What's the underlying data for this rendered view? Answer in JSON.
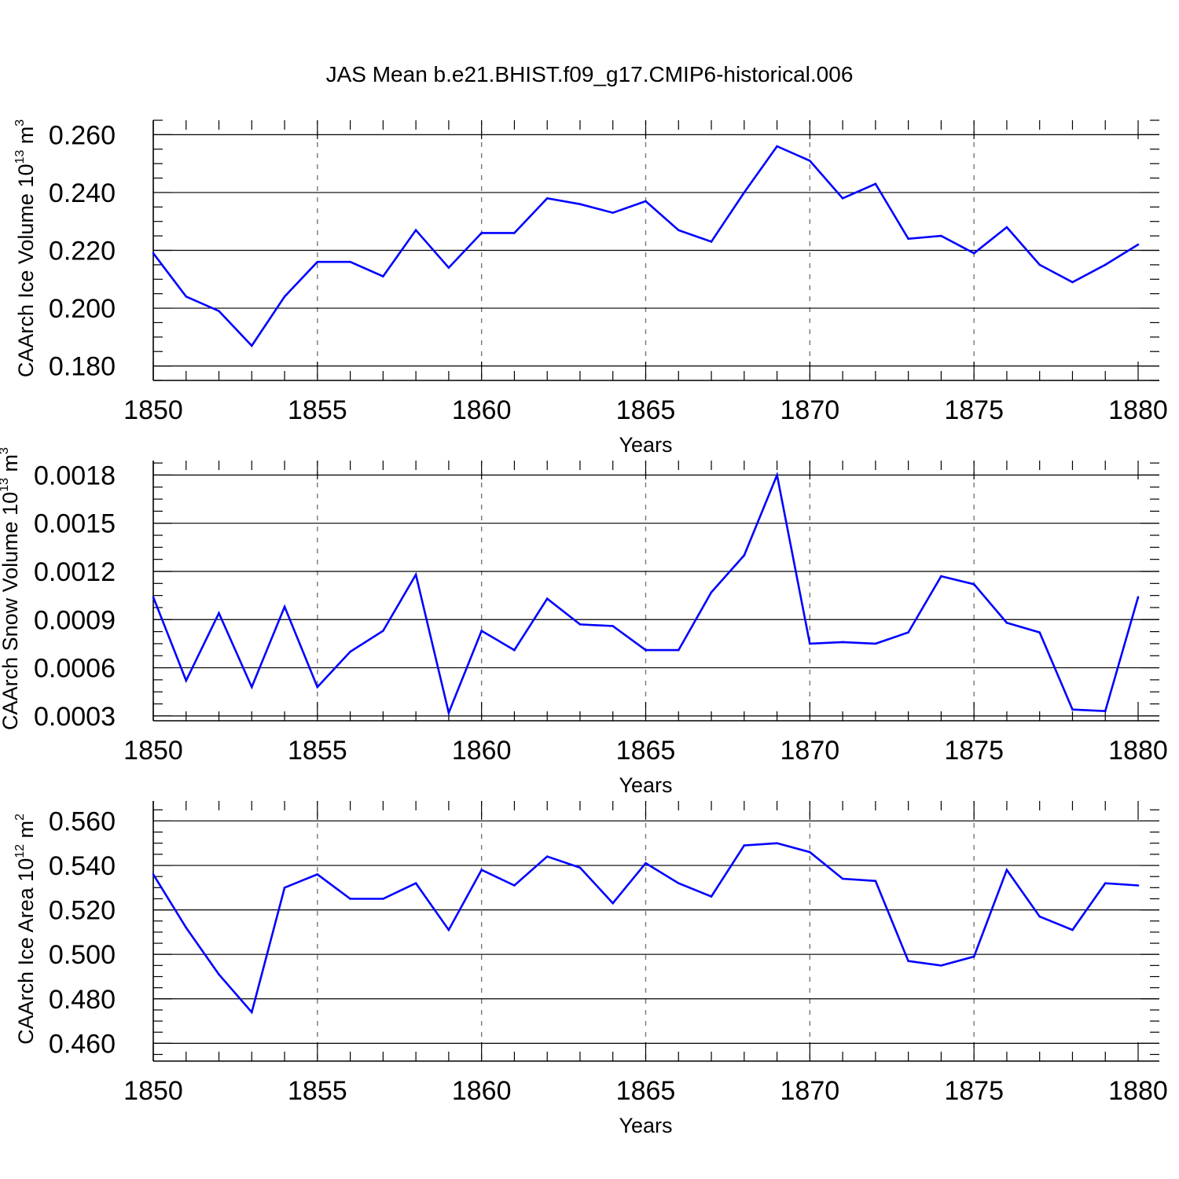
{
  "figure_title": "JAS Mean b.e21.BHIST.f09_g17.CMIP6-historical.006",
  "chart_data": [
    {
      "type": "line",
      "title": "",
      "xlabel": "Years",
      "ylabel": {
        "base": "CAArch Ice Volume 10",
        "exp": "13",
        "unit": " m",
        "unit_exp": "3"
      },
      "xlim": [
        1850,
        1880
      ],
      "xticks": [
        "1850",
        "1855",
        "1860",
        "1865",
        "1870",
        "1875",
        "1880"
      ],
      "ylim": [
        0.175,
        0.265
      ],
      "yticks": [
        "0.180",
        "0.200",
        "0.220",
        "0.240",
        "0.260"
      ],
      "grid": "dashed vertical at x major ticks",
      "series_color": "#0000ff",
      "x": [
        1850,
        1851,
        1852,
        1853,
        1854,
        1855,
        1856,
        1857,
        1858,
        1859,
        1860,
        1861,
        1862,
        1863,
        1864,
        1865,
        1866,
        1867,
        1868,
        1869,
        1870,
        1871,
        1872,
        1873,
        1874,
        1875,
        1876,
        1877,
        1878,
        1879,
        1880
      ],
      "values": [
        0.219,
        0.204,
        0.199,
        0.187,
        0.204,
        0.216,
        0.216,
        0.211,
        0.227,
        0.214,
        0.226,
        0.226,
        0.238,
        0.236,
        0.233,
        0.237,
        0.227,
        0.223,
        0.24,
        0.256,
        0.251,
        0.238,
        0.243,
        0.224,
        0.225,
        0.219,
        0.228,
        0.215,
        0.209,
        0.215,
        0.222
      ]
    },
    {
      "type": "line",
      "title": "",
      "xlabel": "Years",
      "ylabel": {
        "base": "CAArch Snow Volume 10",
        "exp": "13",
        "unit": " m",
        "unit_exp": "3"
      },
      "xlim": [
        1850,
        1880
      ],
      "xticks": [
        "1850",
        "1855",
        "1860",
        "1865",
        "1870",
        "1875",
        "1880"
      ],
      "ylim": [
        0.00027,
        0.00189
      ],
      "yticks": [
        "0.0003",
        "0.0006",
        "0.0009",
        "0.0012",
        "0.0015",
        "0.0018"
      ],
      "grid": "dashed vertical at x major ticks",
      "series_color": "#0000ff",
      "x": [
        1850,
        1851,
        1852,
        1853,
        1854,
        1855,
        1856,
        1857,
        1858,
        1859,
        1860,
        1861,
        1862,
        1863,
        1864,
        1865,
        1866,
        1867,
        1868,
        1869,
        1870,
        1871,
        1872,
        1873,
        1874,
        1875,
        1876,
        1877,
        1878,
        1879,
        1880
      ],
      "values": [
        0.00104,
        0.00052,
        0.00094,
        0.00048,
        0.00098,
        0.00048,
        0.0007,
        0.00083,
        0.00118,
        0.00032,
        0.00083,
        0.00071,
        0.00103,
        0.00087,
        0.00086,
        0.00071,
        0.00071,
        0.00107,
        0.0013,
        0.0018,
        0.00075,
        0.00076,
        0.00075,
        0.00082,
        0.00117,
        0.00112,
        0.00088,
        0.00082,
        0.00034,
        0.00033,
        0.00104
      ]
    },
    {
      "type": "line",
      "title": "",
      "xlabel": "Years",
      "ylabel": {
        "base": "CAArch Ice Area 10",
        "exp": "12",
        "unit": " m",
        "unit_exp": "2"
      },
      "xlim": [
        1850,
        1880
      ],
      "xticks": [
        "1850",
        "1855",
        "1860",
        "1865",
        "1870",
        "1875",
        "1880"
      ],
      "ylim": [
        0.452,
        0.569
      ],
      "yticks": [
        "0.460",
        "0.480",
        "0.500",
        "0.520",
        "0.540",
        "0.560"
      ],
      "grid": "dashed vertical at x major ticks",
      "series_color": "#0000ff",
      "x": [
        1850,
        1851,
        1852,
        1853,
        1854,
        1855,
        1856,
        1857,
        1858,
        1859,
        1860,
        1861,
        1862,
        1863,
        1864,
        1865,
        1866,
        1867,
        1868,
        1869,
        1870,
        1871,
        1872,
        1873,
        1874,
        1875,
        1876,
        1877,
        1878,
        1879,
        1880
      ],
      "values": [
        0.536,
        0.512,
        0.491,
        0.474,
        0.53,
        0.536,
        0.525,
        0.525,
        0.532,
        0.511,
        0.538,
        0.531,
        0.544,
        0.539,
        0.523,
        0.541,
        0.532,
        0.526,
        0.549,
        0.55,
        0.546,
        0.534,
        0.533,
        0.497,
        0.495,
        0.499,
        0.538,
        0.517,
        0.511,
        0.532,
        0.531
      ]
    }
  ]
}
